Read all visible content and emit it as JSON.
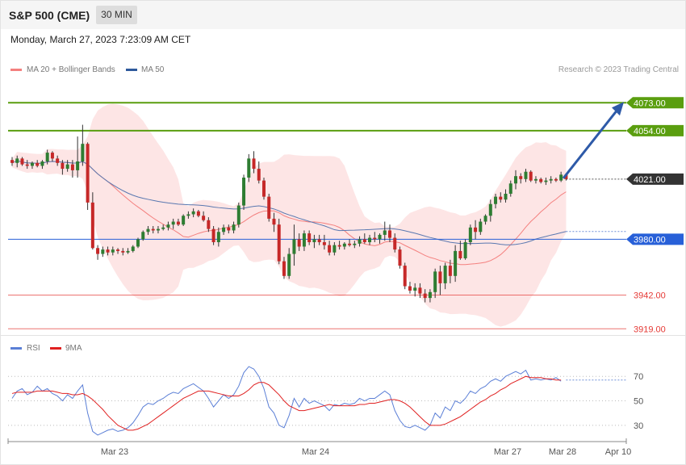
{
  "header": {
    "title": "S&P 500 (CME)",
    "timeframe": "30 MIN",
    "timestamp": "Monday, March 27, 2023 7:23:09 AM CET"
  },
  "legend": {
    "price": [
      {
        "label": "MA 20 + Bollinger Bands",
        "color": "#f4807f"
      },
      {
        "label": "MA 50",
        "color": "#2e5a9c"
      }
    ],
    "rsi": [
      {
        "label": "RSI",
        "color": "#5b7fd6"
      },
      {
        "label": "9MA",
        "color": "#e02020"
      }
    ]
  },
  "copyright": "Research © 2023 Trading Central",
  "colors": {
    "up": "#2e7d32",
    "down": "#c62828",
    "resistance": "#5a9e0f",
    "pivot": "#2860d8",
    "support": "#e53935",
    "last": "#333333",
    "band": "#fde0e0",
    "arrow": "#2e5aa8"
  },
  "chart_data": [
    {
      "type": "candlestick",
      "title": "S&P 500 (CME)",
      "timeframe": "30 MIN",
      "ylim": [
        3912,
        4088
      ],
      "x_ticks": [
        "Mar 23",
        "Mar 24",
        "Mar 27",
        "Mar 28",
        "Apr 10"
      ],
      "levels": [
        {
          "role": "resistance",
          "value": 4073.0,
          "label": "4073.00"
        },
        {
          "role": "resistance",
          "value": 4054.0,
          "label": "4054.00"
        },
        {
          "role": "last",
          "value": 4021.0,
          "label": "4021.00"
        },
        {
          "role": "pivot",
          "value": 3980.0,
          "label": "3980.00"
        },
        {
          "role": "support",
          "value": 3942.0,
          "label": "3942.00"
        },
        {
          "role": "support",
          "value": 3919.0,
          "label": "3919.00"
        }
      ],
      "forecast_arrow": {
        "from": 4021,
        "to": 4073
      },
      "candles": [
        [
          4034,
          4036,
          4030,
          4032
        ],
        [
          4032,
          4037,
          4029,
          4035
        ],
        [
          4035,
          4036,
          4030,
          4031
        ],
        [
          4031,
          4034,
          4028,
          4030
        ],
        [
          4030,
          4033,
          4028,
          4032
        ],
        [
          4032,
          4034,
          4029,
          4030
        ],
        [
          4030,
          4034,
          4028,
          4033
        ],
        [
          4033,
          4041,
          4031,
          4039
        ],
        [
          4039,
          4040,
          4033,
          4035
        ],
        [
          4035,
          4037,
          4030,
          4032
        ],
        [
          4032,
          4034,
          4024,
          4028
        ],
        [
          4028,
          4034,
          4026,
          4031
        ],
        [
          4031,
          4034,
          4022,
          4027
        ],
        [
          4027,
          4050,
          4022,
          4033
        ],
        [
          4033,
          4058,
          4030,
          4045
        ],
        [
          4045,
          4046,
          4000,
          4005
        ],
        [
          4005,
          4012,
          3973,
          3974
        ],
        [
          3974,
          3976,
          3966,
          3970
        ],
        [
          3970,
          3975,
          3968,
          3973
        ],
        [
          3973,
          3975,
          3969,
          3971
        ],
        [
          3971,
          3975,
          3969,
          3973
        ],
        [
          3973,
          3974,
          3970,
          3972
        ],
        [
          3972,
          3974,
          3969,
          3971
        ],
        [
          3971,
          3974,
          3970,
          3972
        ],
        [
          3972,
          3976,
          3971,
          3975
        ],
        [
          3975,
          3981,
          3974,
          3980
        ],
        [
          3980,
          3986,
          3979,
          3985
        ],
        [
          3985,
          3989,
          3983,
          3987
        ],
        [
          3987,
          3989,
          3984,
          3986
        ],
        [
          3986,
          3989,
          3984,
          3987
        ],
        [
          3987,
          3990,
          3986,
          3988
        ],
        [
          3988,
          3992,
          3986,
          3990
        ],
        [
          3990,
          3994,
          3987,
          3992
        ],
        [
          3992,
          3994,
          3989,
          3990
        ],
        [
          3990,
          3997,
          3989,
          3996
        ],
        [
          3996,
          3999,
          3994,
          3997
        ],
        [
          3997,
          4001,
          3995,
          3999
        ],
        [
          3999,
          4000,
          3995,
          3996
        ],
        [
          3996,
          3999,
          3992,
          3993
        ],
        [
          3993,
          3995,
          3985,
          3987
        ],
        [
          3987,
          3989,
          3976,
          3978
        ],
        [
          3978,
          3988,
          3975,
          3985
        ],
        [
          3985,
          3990,
          3983,
          3988
        ],
        [
          3988,
          3990,
          3984,
          3986
        ],
        [
          3986,
          3992,
          3984,
          3990
        ],
        [
          3990,
          4005,
          3988,
          4003
        ],
        [
          4003,
          4024,
          4000,
          4022
        ],
        [
          4022,
          4038,
          4019,
          4035
        ],
        [
          4035,
          4040,
          4025,
          4028
        ],
        [
          4028,
          4033,
          4018,
          4020
        ],
        [
          4020,
          4022,
          4007,
          4009
        ],
        [
          4009,
          4011,
          3992,
          3994
        ],
        [
          3994,
          3998,
          3985,
          3990
        ],
        [
          3990,
          3994,
          3963,
          3965
        ],
        [
          3965,
          3968,
          3953,
          3955
        ],
        [
          3955,
          3974,
          3953,
          3970
        ],
        [
          3970,
          3990,
          3962,
          3980
        ],
        [
          3980,
          3984,
          3972,
          3975
        ],
        [
          3975,
          3986,
          3972,
          3984
        ],
        [
          3984,
          3986,
          3976,
          3978
        ],
        [
          3978,
          3983,
          3974,
          3980
        ],
        [
          3980,
          3983,
          3976,
          3978
        ],
        [
          3978,
          3983,
          3973,
          3976
        ],
        [
          3976,
          3979,
          3969,
          3971
        ],
        [
          3971,
          3978,
          3969,
          3976
        ],
        [
          3976,
          3979,
          3973,
          3975
        ],
        [
          3975,
          3978,
          3973,
          3977
        ],
        [
          3977,
          3980,
          3975,
          3976
        ],
        [
          3976,
          3979,
          3974,
          3977
        ],
        [
          3977,
          3982,
          3975,
          3980
        ],
        [
          3980,
          3984,
          3977,
          3978
        ],
        [
          3978,
          3983,
          3976,
          3981
        ],
        [
          3981,
          3985,
          3978,
          3980
        ],
        [
          3980,
          3984,
          3977,
          3983
        ],
        [
          3983,
          3992,
          3979,
          3986
        ],
        [
          3986,
          3990,
          3978,
          3981
        ],
        [
          3981,
          3984,
          3971,
          3973
        ],
        [
          3973,
          3975,
          3960,
          3962
        ],
        [
          3962,
          3964,
          3946,
          3948
        ],
        [
          3948,
          3951,
          3943,
          3945
        ],
        [
          3945,
          3950,
          3941,
          3947
        ],
        [
          3947,
          3950,
          3940,
          3943
        ],
        [
          3943,
          3946,
          3937,
          3940
        ],
        [
          3940,
          3946,
          3937,
          3944
        ],
        [
          3944,
          3960,
          3940,
          3958
        ],
        [
          3958,
          3962,
          3942,
          3950
        ],
        [
          3950,
          3964,
          3946,
          3962
        ],
        [
          3962,
          3966,
          3950,
          3955
        ],
        [
          3955,
          3976,
          3951,
          3972
        ],
        [
          3972,
          3979,
          3966,
          3967
        ],
        [
          3967,
          3980,
          3966,
          3978
        ],
        [
          3978,
          3990,
          3976,
          3988
        ],
        [
          3988,
          3993,
          3980,
          3985
        ],
        [
          3985,
          3994,
          3983,
          3992
        ],
        [
          3992,
          3997,
          3990,
          3996
        ],
        [
          3996,
          4007,
          3992,
          4004
        ],
        [
          4004,
          4011,
          4001,
          4009
        ],
        [
          4009,
          4012,
          4005,
          4007
        ],
        [
          4007,
          4014,
          4005,
          4011
        ],
        [
          4011,
          4020,
          4009,
          4018
        ],
        [
          4018,
          4027,
          4014,
          4023
        ],
        [
          4023,
          4025,
          4018,
          4021
        ],
        [
          4021,
          4028,
          4019,
          4026
        ],
        [
          4026,
          4027,
          4019,
          4020
        ],
        [
          4020,
          4023,
          4018,
          4021
        ],
        [
          4021,
          4022,
          4018,
          4019
        ],
        [
          4019,
          4022,
          4017,
          4020
        ],
        [
          4020,
          4023,
          4018,
          4021
        ],
        [
          4021,
          4022,
          4019,
          4020
        ],
        [
          4020,
          4026,
          4019,
          4024
        ],
        [
          4024,
          4025,
          4020,
          4021
        ]
      ]
    },
    {
      "type": "line",
      "title": "RSI",
      "ylim": [
        18,
        84
      ],
      "y_ticks": [
        30,
        50,
        70
      ],
      "x_ticks": [
        "Mar 23",
        "Mar 24",
        "Mar 27",
        "Mar 28",
        "Apr 10"
      ],
      "series": [
        {
          "name": "RSI",
          "values": [
            52,
            58,
            60,
            55,
            57,
            62,
            58,
            60,
            56,
            54,
            50,
            55,
            52,
            58,
            63,
            40,
            25,
            22,
            24,
            26,
            27,
            25,
            26,
            28,
            32,
            38,
            45,
            48,
            47,
            50,
            52,
            55,
            57,
            56,
            60,
            62,
            64,
            61,
            58,
            52,
            45,
            50,
            55,
            52,
            55,
            62,
            73,
            78,
            76,
            70,
            60,
            45,
            40,
            30,
            28,
            38,
            52,
            45,
            52,
            48,
            50,
            48,
            46,
            42,
            47,
            46,
            48,
            47,
            48,
            52,
            50,
            52,
            52,
            55,
            58,
            55,
            42,
            34,
            29,
            28,
            30,
            28,
            26,
            30,
            40,
            36,
            45,
            42,
            50,
            48,
            52,
            58,
            56,
            60,
            62,
            66,
            68,
            66,
            70,
            72,
            74,
            72,
            75,
            67,
            68,
            67,
            68,
            67,
            69,
            66
          ]
        },
        {
          "name": "9MA",
          "values": [
            56,
            57,
            57,
            57,
            57,
            58,
            58,
            58,
            58,
            57,
            56,
            56,
            55,
            55,
            56,
            54,
            51,
            47,
            43,
            38,
            34,
            30,
            28,
            26,
            26,
            27,
            29,
            31,
            34,
            37,
            40,
            43,
            46,
            49,
            52,
            54,
            56,
            58,
            58,
            58,
            57,
            56,
            55,
            54,
            54,
            54,
            56,
            59,
            63,
            65,
            65,
            63,
            59,
            55,
            50,
            46,
            44,
            42,
            42,
            43,
            44,
            45,
            46,
            47,
            46,
            46,
            46,
            46,
            46,
            47,
            47,
            48,
            48,
            49,
            50,
            51,
            51,
            50,
            48,
            45,
            41,
            37,
            33,
            30,
            30,
            30,
            31,
            33,
            35,
            37,
            40,
            43,
            46,
            49,
            51,
            54,
            56,
            59,
            61,
            64,
            66,
            68,
            70,
            69,
            69,
            69,
            68,
            68,
            67,
            67
          ]
        }
      ]
    }
  ]
}
